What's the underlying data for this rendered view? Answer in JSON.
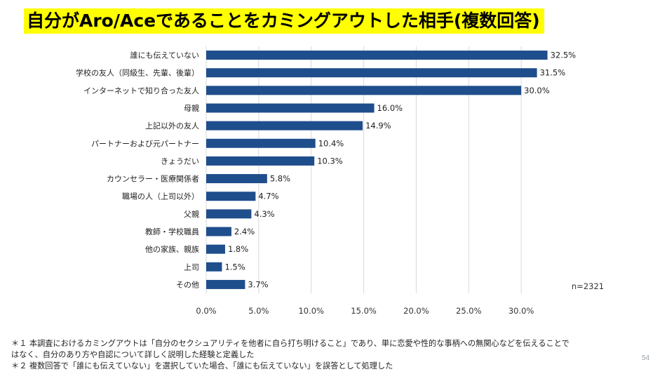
{
  "title": "自分がAro/Aceであることをカミングアウトした相手(複数回答)",
  "chart_data": {
    "type": "bar",
    "orientation": "horizontal",
    "categories": [
      "誰にも伝えていない",
      "学校の友人（同級生、先輩、後輩）",
      "インターネットで知り合った友人",
      "母親",
      "上記以外の友人",
      "パートナーおよび元パートナー",
      "きょうだい",
      "カウンセラー・医療関係者",
      "職場の人（上司以外）",
      "父親",
      "教師・学校職員",
      "他の家族、親族",
      "上司",
      "その他"
    ],
    "values": [
      32.5,
      31.5,
      30.0,
      16.0,
      14.9,
      10.4,
      10.3,
      5.8,
      4.7,
      4.3,
      2.4,
      1.8,
      1.5,
      3.7
    ],
    "value_labels": [
      "32.5%",
      "31.5%",
      "30.0%",
      "16.0%",
      "14.9%",
      "10.4%",
      "10.3%",
      "5.8%",
      "4.7%",
      "4.3%",
      "2.4%",
      "1.8%",
      "1.5%",
      "3.7%"
    ],
    "xlim": [
      0,
      35
    ],
    "x_ticks": [
      0,
      5,
      10,
      15,
      20,
      25,
      30
    ],
    "x_tick_labels": [
      "0.0%",
      "5.0%",
      "10.0%",
      "15.0%",
      "20.0%",
      "25.0%",
      "30.0%"
    ],
    "grid": true,
    "bar_color": "#1f4e8c",
    "annotation": "n=2321"
  },
  "footnotes": [
    "＊１ 本調査におけるカミングアウトは「自分のセクシュアリティを他者に自ら打ち明けること」であり、単に恋愛や性的な事柄への無関心などを伝えることで",
    "はなく、自分のあり方や自認について詳しく説明した経験と定義した",
    "＊２ 複数回答で「誰にも伝えていない」を選択していた場合、「誰にも伝えていない」を誤答として処理した"
  ],
  "page_number": "54",
  "colors": {
    "title_highlight": "#ffff00",
    "bar": "#1f4e8c",
    "grid": "#d9d9d9"
  }
}
